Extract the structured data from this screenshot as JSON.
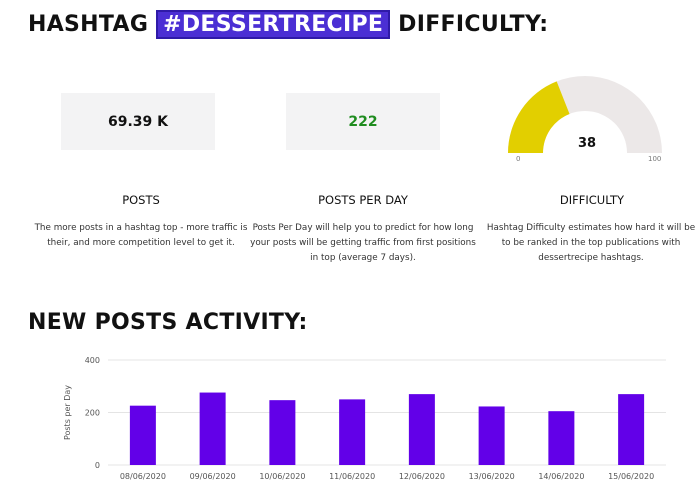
{
  "header": {
    "prefix": "HASHTAG ",
    "hashtag": "#DESSERTRECIPE",
    "suffix": " DIFFICULTY:"
  },
  "stats": {
    "posts": {
      "value": "69.39 K",
      "label": "POSTS",
      "description": "The more posts in a hashtag top - more traffic is their, and more competition level to get it."
    },
    "posts_per_day": {
      "value": "222",
      "label": "POSTS PER DAY",
      "description": "Posts Per Day will help you to predict for how long your posts will be getting traffic from first positions in top (average 7 days).",
      "value_color": "#1f8c1f"
    },
    "difficulty": {
      "value": "38",
      "min": "0",
      "max": "100",
      "label": "DIFFICULTY",
      "description": "Hashtag Difficulty estimates how hard it will be to be ranked in the top publications with dessertrecipe hashtags.",
      "fill_color": "#e2cf00",
      "track_color": "#ece8e8"
    }
  },
  "activity": {
    "title": "NEW POSTS ACTIVITY:"
  },
  "chart_data": {
    "type": "bar",
    "categories": [
      "08/06/2020",
      "09/06/2020",
      "10/06/2020",
      "11/06/2020",
      "12/06/2020",
      "13/06/2020",
      "14/06/2020",
      "15/06/2020"
    ],
    "values": [
      226,
      276,
      247,
      250,
      270,
      223,
      205,
      270
    ],
    "ylabel": "Posts per Day",
    "xlabel": "",
    "ylim": [
      0,
      400
    ],
    "yticks": [
      0,
      200,
      400
    ],
    "bar_color": "#6200e8",
    "grid": true
  }
}
